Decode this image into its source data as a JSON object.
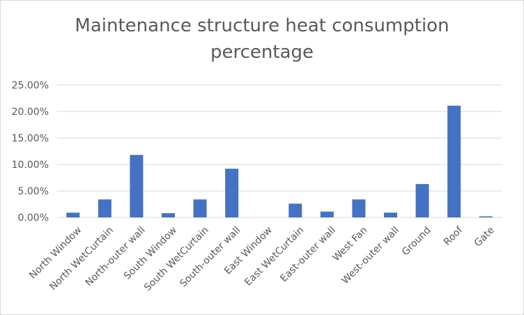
{
  "chart_data": {
    "type": "bar",
    "title_lines": [
      "Maintenance structure heat consumption",
      "percentage"
    ],
    "categories": [
      "North Window",
      "North WetCurtain",
      "North-outer wall",
      "South Window",
      "South WetCurtain",
      "South-outer wall",
      "East Window",
      "East WetCurtain",
      "East-outer wall",
      "West Fan",
      "West-outer wall",
      "Ground",
      "Roof",
      "Gate"
    ],
    "values": [
      0.9,
      3.4,
      11.8,
      0.8,
      3.4,
      9.2,
      0.0,
      2.6,
      1.1,
      3.4,
      0.9,
      6.3,
      21.1,
      0.2
    ],
    "unit": "%",
    "ylim": [
      0,
      25
    ],
    "yticks": [
      "0.00%",
      "5.00%",
      "10.00%",
      "15.00%",
      "20.00%",
      "25.00%"
    ],
    "grid": true,
    "bar_color": "#4472c4",
    "grid_color": "#d9d9d9",
    "legend": "none"
  }
}
